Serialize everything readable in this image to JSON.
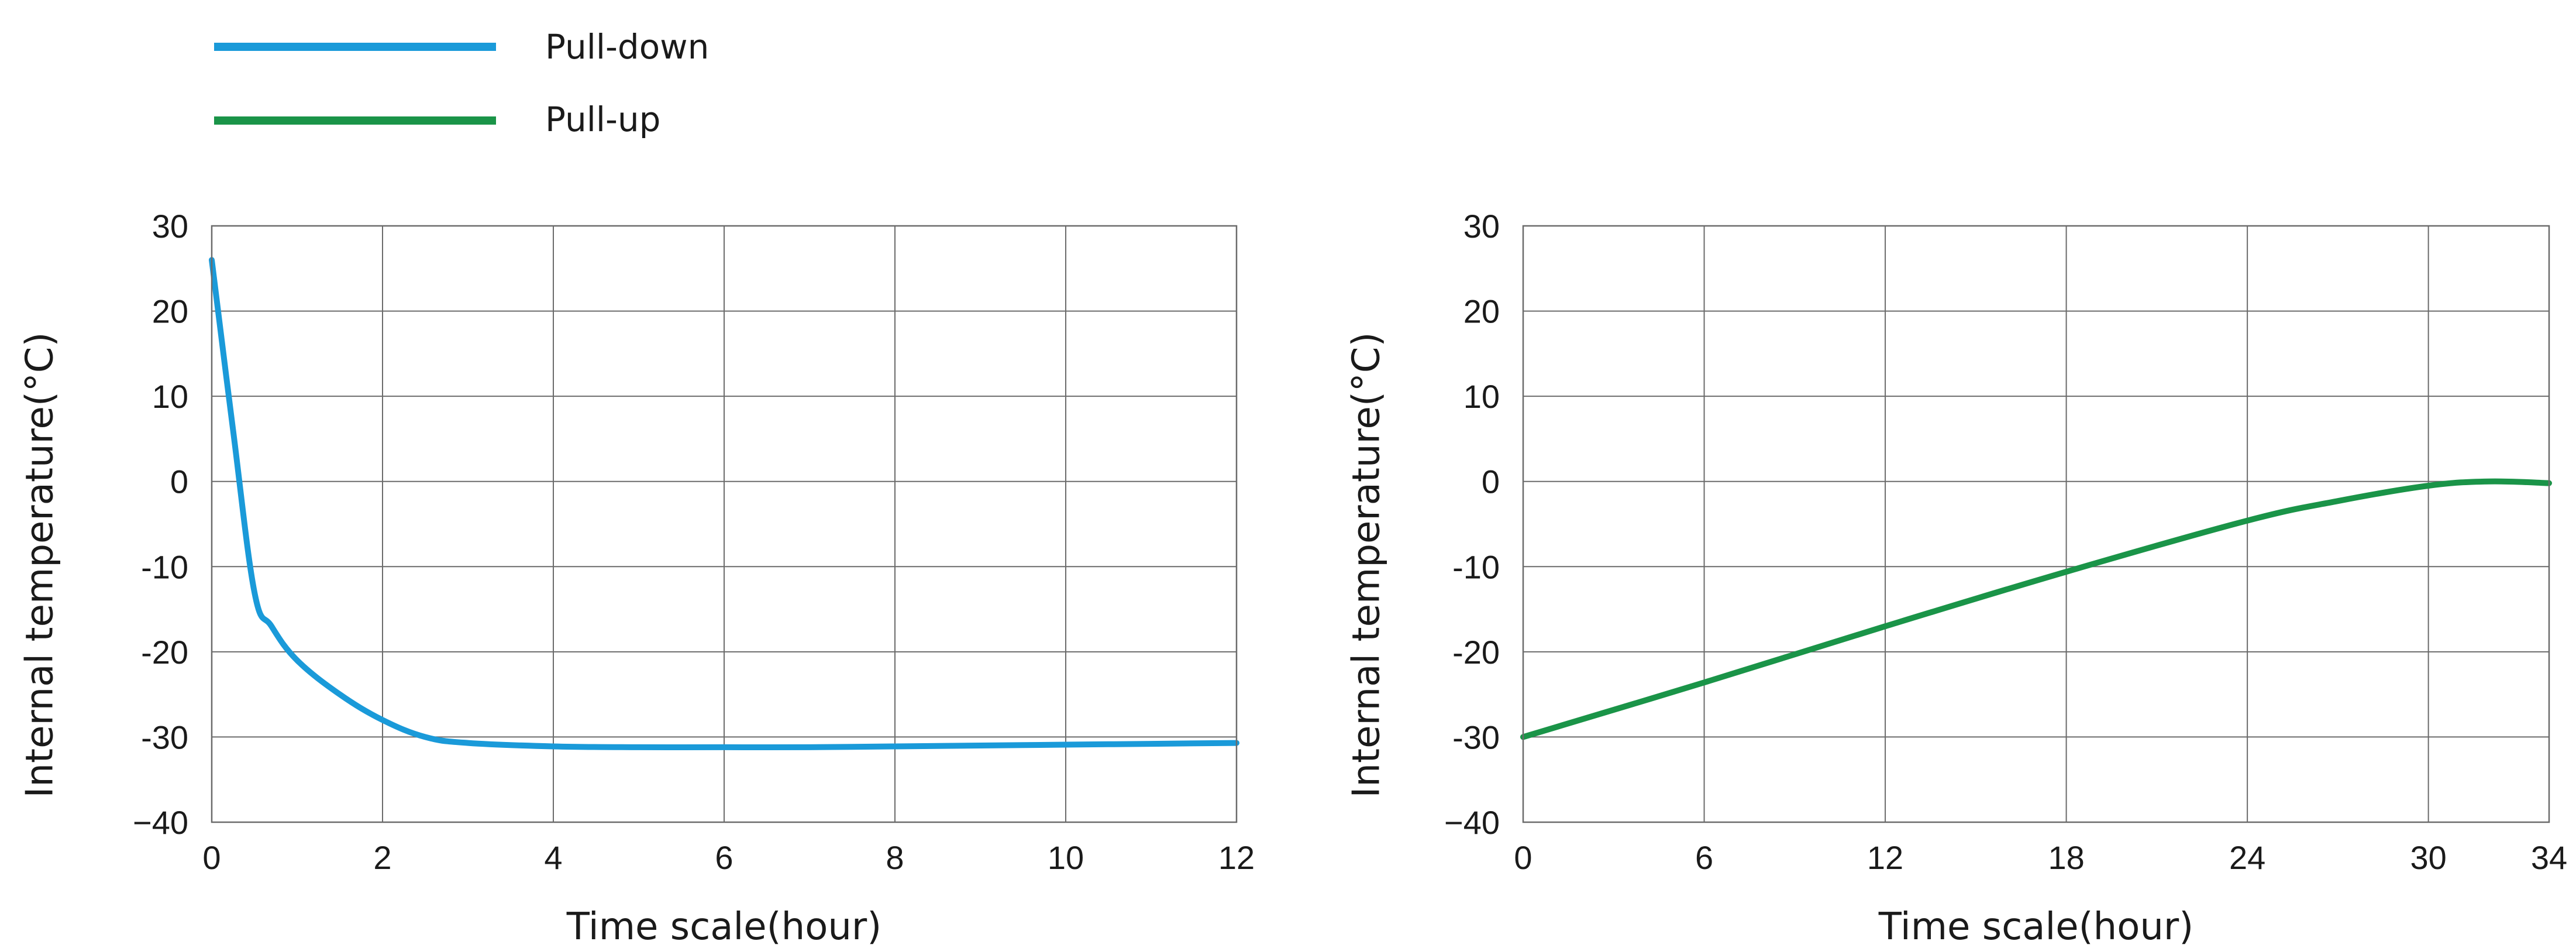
{
  "legend": {
    "position": "top-left",
    "items": [
      {
        "label": "Pull-down",
        "color": "#1a9ad9"
      },
      {
        "label": "Pull-up",
        "color": "#1a9448"
      }
    ]
  },
  "chart_data": [
    {
      "type": "line",
      "xlabel": "Time scale(hour)",
      "ylabel": "Internal temperature(°C)",
      "xlim": [
        0,
        12
      ],
      "ylim": [
        -40,
        30
      ],
      "xticks": [
        "0",
        "2",
        "4",
        "6",
        "8",
        "10",
        "12"
      ],
      "yticks": [
        "30",
        "20",
        "10",
        "0",
        "-10",
        "-20",
        "-30",
        "−40"
      ],
      "grid": true,
      "series": [
        {
          "name": "Pull-down",
          "color": "#1a9ad9",
          "x": [
            0,
            0.25,
            0.5,
            0.7,
            1.0,
            1.5,
            2.0,
            2.5,
            3.0,
            4.0,
            5.0,
            6.0,
            7.0,
            8.0,
            9.0,
            10.0,
            11.0,
            12.0
          ],
          "y": [
            26,
            6,
            -13,
            -17,
            -21,
            -25,
            -28,
            -30,
            -30.7,
            -31.1,
            -31.2,
            -31.2,
            -31.2,
            -31.1,
            -31.0,
            -30.9,
            -30.8,
            -30.7
          ]
        }
      ]
    },
    {
      "type": "line",
      "xlabel": "Time scale(hour)",
      "ylabel": "Internal temperature(°C)",
      "xlim": [
        0,
        34
      ],
      "ylim": [
        -40,
        30
      ],
      "xticks": [
        "0",
        "6",
        "12",
        "18",
        "24",
        "30",
        "34"
      ],
      "yticks": [
        "30",
        "20",
        "10",
        "0",
        "-10",
        "-20",
        "-30",
        "−40"
      ],
      "grid": true,
      "series": [
        {
          "name": "Pull-up",
          "color": "#1a9448",
          "x": [
            0,
            6,
            12,
            18,
            24,
            27,
            30,
            32,
            34
          ],
          "y": [
            -30,
            -23.6,
            -17,
            -10.6,
            -4.6,
            -2.3,
            -0.5,
            0,
            -0.2
          ]
        }
      ]
    }
  ]
}
